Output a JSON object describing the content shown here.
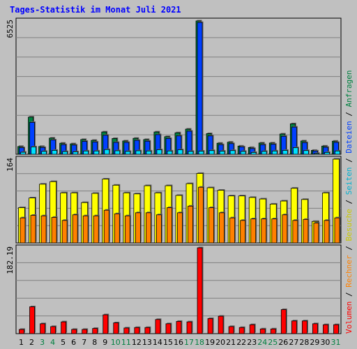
{
  "title": "Tages-Statistik im Monat Juli 2021",
  "colors": {
    "anfragen": "#008040",
    "dateien": "#0040FF",
    "seiten": "#00E0FF",
    "besuche": "#FFFF00",
    "rechner": "#FF8000",
    "volumen": "#FF0000",
    "weekend_label": "#008040",
    "weekday_label": "#000000"
  },
  "legend": {
    "volumen": "Volumen",
    "rechner": "Rechner",
    "besuche": "Besuche",
    "seiten": "Seiten",
    "dateien": "Dateien",
    "anfragen": "Anfragen",
    "sep": "/"
  },
  "chart_data": [
    {
      "type": "bar",
      "panel": "requests",
      "ymax_label": "6525",
      "ylim": [
        0,
        6525
      ],
      "grid": true,
      "categories": [
        "1",
        "2",
        "3",
        "4",
        "5",
        "6",
        "7",
        "8",
        "9",
        "10",
        "11",
        "12",
        "13",
        "14",
        "15",
        "16",
        "17",
        "18",
        "19",
        "20",
        "21",
        "22",
        "23",
        "24",
        "25",
        "26",
        "27",
        "28",
        "29",
        "30",
        "31"
      ],
      "weekend_days": [
        3,
        4,
        10,
        11,
        17,
        18,
        24,
        25,
        31
      ],
      "series": [
        {
          "name": "Anfragen",
          "values": [
            380,
            1820,
            380,
            790,
            540,
            510,
            720,
            680,
            1090,
            770,
            650,
            780,
            720,
            1090,
            860,
            1050,
            1230,
            6525,
            1010,
            540,
            590,
            400,
            330,
            550,
            550,
            990,
            1490,
            650,
            190,
            400,
            640
          ]
        },
        {
          "name": "Dateien",
          "values": [
            320,
            1560,
            330,
            700,
            470,
            450,
            630,
            600,
            930,
            580,
            580,
            680,
            640,
            960,
            770,
            900,
            1130,
            6450,
            900,
            470,
            520,
            360,
            280,
            470,
            490,
            880,
            1330,
            570,
            160,
            340,
            580
          ]
        },
        {
          "name": "Seiten",
          "values": [
            100,
            360,
            140,
            190,
            130,
            120,
            160,
            160,
            230,
            170,
            140,
            170,
            160,
            220,
            160,
            220,
            140,
            150,
            180,
            150,
            180,
            140,
            90,
            140,
            160,
            190,
            320,
            180,
            40,
            90,
            160
          ]
        }
      ]
    },
    {
      "type": "bar",
      "panel": "visits",
      "ymax_label": "164",
      "ylim": [
        0,
        164
      ],
      "grid": true,
      "categories": [
        "1",
        "2",
        "3",
        "4",
        "5",
        "6",
        "7",
        "8",
        "9",
        "10",
        "11",
        "12",
        "13",
        "14",
        "15",
        "16",
        "17",
        "18",
        "19",
        "20",
        "21",
        "22",
        "23",
        "24",
        "25",
        "26",
        "27",
        "28",
        "29",
        "30",
        "31"
      ],
      "series": [
        {
          "name": "Besuche",
          "values": [
            69,
            88,
            115,
            120,
            98,
            98,
            79,
            97,
            125,
            113,
            98,
            96,
            112,
            98,
            112,
            93,
            116,
            136,
            108,
            103,
            92,
            92,
            89,
            86,
            76,
            82,
            107,
            85,
            42,
            98,
            164
          ]
        },
        {
          "name": "Rechner",
          "values": [
            49,
            54,
            53,
            50,
            44,
            55,
            53,
            53,
            64,
            57,
            53,
            59,
            59,
            55,
            69,
            59,
            72,
            109,
            69,
            59,
            49,
            44,
            47,
            47,
            47,
            55,
            44,
            46,
            39,
            44,
            49
          ]
        }
      ]
    },
    {
      "type": "bar",
      "panel": "volume",
      "ymax_label": "182.19",
      "ylim": [
        0,
        182.19
      ],
      "grid": true,
      "categories": [
        "1",
        "2",
        "3",
        "4",
        "5",
        "6",
        "7",
        "8",
        "9",
        "10",
        "11",
        "12",
        "13",
        "14",
        "15",
        "16",
        "17",
        "18",
        "19",
        "20",
        "21",
        "22",
        "23",
        "24",
        "25",
        "26",
        "27",
        "28",
        "29",
        "30",
        "31"
      ],
      "series": [
        {
          "name": "Volumen",
          "values": [
            9,
            57,
            21,
            15,
            25,
            9,
            9,
            11,
            40,
            23,
            12,
            13,
            13,
            30,
            21,
            26,
            25,
            182.19,
            32,
            37,
            15,
            13,
            19,
            10,
            10,
            51,
            27,
            27,
            21,
            19,
            19
          ]
        }
      ]
    }
  ]
}
